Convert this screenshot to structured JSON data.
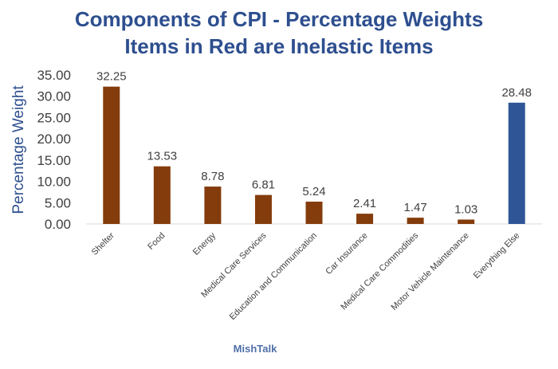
{
  "chart_data": {
    "type": "bar",
    "title": "Components of CPI - Percentage Weights",
    "subtitle": "Items in Red are Inelastic Items",
    "xlabel": "",
    "ylabel": "Percentage Weight",
    "ylim": [
      0,
      35
    ],
    "yticks": [
      "0.00",
      "5.00",
      "10.00",
      "15.00",
      "20.00",
      "25.00",
      "30.00",
      "35.00"
    ],
    "grid": false,
    "categories": [
      "Shelter",
      "Food",
      "Energy",
      "Medical Care Services",
      "Education and Communication",
      "Car Insurance",
      "Medical Care Commodities",
      "Motor Vehicle Maintenance",
      "Everything Else"
    ],
    "values": [
      32.25,
      13.53,
      8.78,
      6.81,
      5.24,
      2.41,
      1.47,
      1.03,
      28.48
    ],
    "value_labels": [
      "32.25",
      "13.53",
      "8.78",
      "6.81",
      "5.24",
      "2.41",
      "1.47",
      "1.03",
      "28.48"
    ],
    "bar_colors": [
      "#843c0c",
      "#843c0c",
      "#843c0c",
      "#843c0c",
      "#843c0c",
      "#843c0c",
      "#843c0c",
      "#843c0c",
      "#2f5597"
    ]
  },
  "source": "MishTalk"
}
